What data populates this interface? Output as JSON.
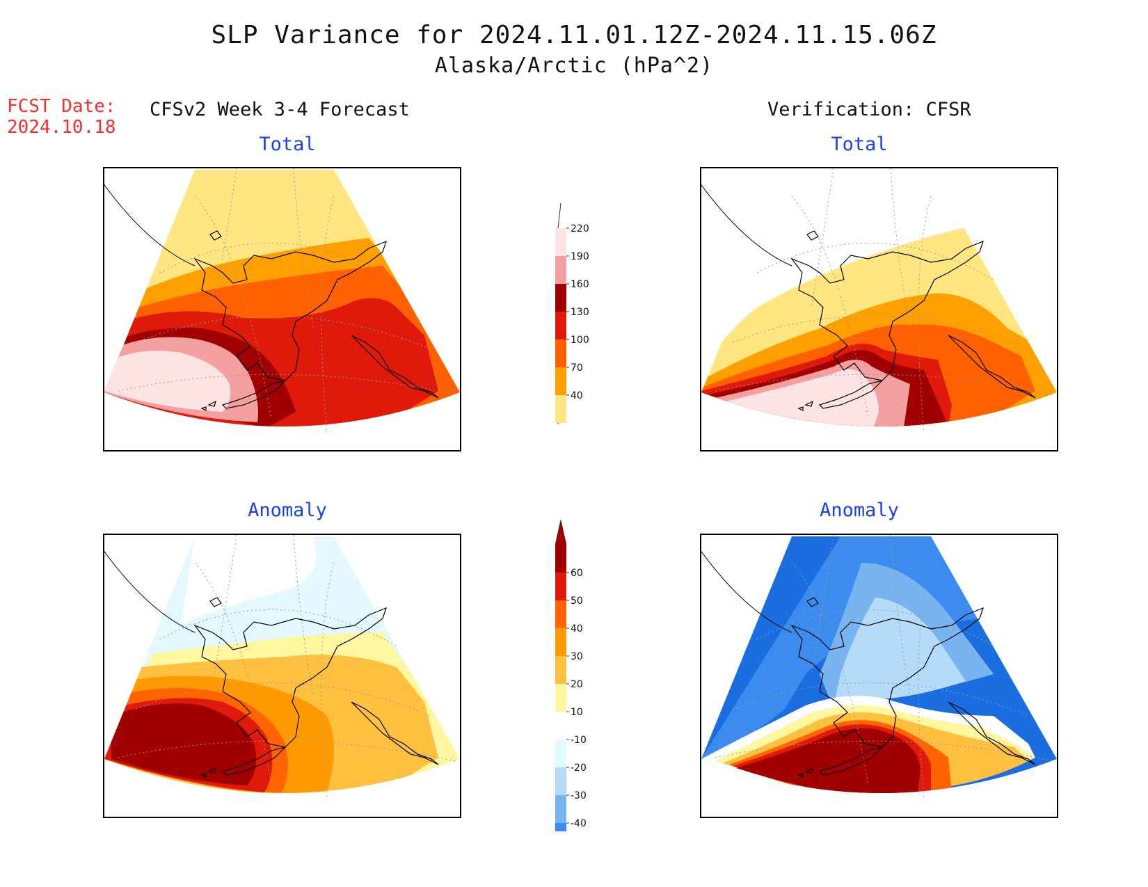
{
  "header": {
    "title": "SLP Variance for 2024.11.01.12Z-2024.11.15.06Z",
    "subtitle": "Alaska/Arctic (hPa^2)"
  },
  "forecast_date": {
    "label": "FCST Date:",
    "value": "2024.10.18"
  },
  "columns": {
    "left": "CFSv2 Week 3-4 Forecast",
    "right": "Verification: CFSR"
  },
  "panels": {
    "forecast_total": "Total",
    "verification_total": "Total",
    "forecast_anomaly": "Anomaly",
    "verification_anomaly": "Anomaly"
  },
  "colorbars": {
    "total": {
      "levels": [
        "40",
        "70",
        "100",
        "130",
        "160",
        "190",
        "220"
      ],
      "colors": [
        "#ffe680",
        "#ffa000",
        "#ff6000",
        "#e01a0a",
        "#a00000",
        "#f4a0a0",
        "#fde4e4"
      ]
    },
    "anomaly": {
      "levels": [
        "-40",
        "-30",
        "-20",
        "-10",
        "10",
        "20",
        "30",
        "40",
        "50",
        "60"
      ],
      "colors": [
        "#1a6ee0",
        "#3c8cf0",
        "#78b4f0",
        "#b4dcfa",
        "#e4f8ff",
        "#ffffff",
        "#fff6a0",
        "#ffc040",
        "#ff9a00",
        "#ff6400",
        "#e01a0a",
        "#a00000"
      ]
    }
  },
  "regions": {
    "forecast_total": [
      {
        "color": "#ffe680"
      },
      {
        "color": "#ffa000"
      },
      {
        "color": "#ff6000"
      },
      {
        "color": "#e01a0a"
      },
      {
        "color": "#a00000"
      },
      {
        "color": "#f4a0a0"
      },
      {
        "color": "#fde4e4"
      }
    ],
    "verification_total": [
      {
        "color": "#ffffff"
      },
      {
        "color": "#ffe680"
      },
      {
        "color": "#ffa000"
      },
      {
        "color": "#ff6000"
      },
      {
        "color": "#e01a0a"
      },
      {
        "color": "#a00000"
      },
      {
        "color": "#f4a0a0"
      },
      {
        "color": "#fde4e4"
      }
    ],
    "forecast_anomaly": [
      {
        "color": "#e4f8ff"
      },
      {
        "color": "#ffffff"
      },
      {
        "color": "#fff6a0"
      },
      {
        "color": "#ffc040"
      },
      {
        "color": "#ff9a00"
      },
      {
        "color": "#ff6400"
      },
      {
        "color": "#e01a0a"
      },
      {
        "color": "#a00000"
      }
    ],
    "verification_anomaly": [
      {
        "color": "#1a6ee0"
      },
      {
        "color": "#3c8cf0"
      },
      {
        "color": "#78b4f0"
      },
      {
        "color": "#b4dcfa"
      },
      {
        "color": "#ffffff"
      },
      {
        "color": "#fff6a0"
      },
      {
        "color": "#ffc040"
      },
      {
        "color": "#ff6400"
      },
      {
        "color": "#e01a0a"
      },
      {
        "color": "#a00000"
      }
    ]
  }
}
